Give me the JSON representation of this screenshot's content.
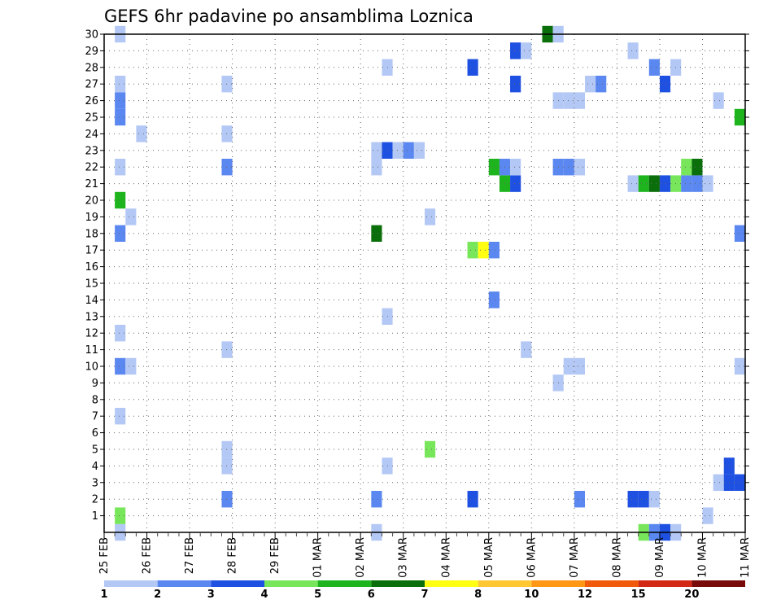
{
  "chart_data": {
    "type": "heatmap",
    "title": "GEFS 6hr padavine po ansamblima Loznica",
    "x_tick_labels": [
      "25 FEB",
      "26 FEB",
      "27 FEB",
      "28 FEB",
      "29 FEB",
      "01 MAR",
      "02 MAR",
      "03 MAR",
      "04 MAR",
      "05 MAR",
      "06 MAR",
      "07 MAR",
      "08 MAR",
      "09 MAR",
      "10 MAR",
      "11 MAR"
    ],
    "y_tick_labels": [
      "1",
      "2",
      "3",
      "4",
      "5",
      "6",
      "7",
      "8",
      "9",
      "10",
      "11",
      "12",
      "13",
      "14",
      "15",
      "16",
      "17",
      "18",
      "19",
      "20",
      "21",
      "22",
      "23",
      "24",
      "25",
      "26",
      "27",
      "28",
      "29",
      "30"
    ],
    "x_range_days": [
      0,
      15
    ],
    "y_range": [
      0,
      30
    ],
    "grid": true,
    "colorbar": {
      "labels": [
        "1",
        "2",
        "3",
        "4",
        "5",
        "6",
        "7",
        "8",
        "10",
        "12",
        "15",
        "20"
      ],
      "colors": [
        "#b4c8f5",
        "#5a87f0",
        "#1e50e1",
        "#78e65a",
        "#1eb41e",
        "#0a6e0a",
        "#ffff14",
        "#ffc832",
        "#ff9614",
        "#f05a0a",
        "#d22814",
        "#780a0a"
      ]
    },
    "cells_note": "each cell: day offset from 25 FEB 00z, member row, precipitation value",
    "cells": [
      {
        "x": 0.25,
        "y": 0,
        "v": 1.5
      },
      {
        "x": 0.25,
        "y": 1,
        "v": 4.5
      },
      {
        "x": 0.25,
        "y": 7,
        "v": 1.5
      },
      {
        "x": 0.25,
        "y": 10,
        "v": 2.5
      },
      {
        "x": 0.5,
        "y": 10,
        "v": 1.5
      },
      {
        "x": 0.25,
        "y": 12,
        "v": 1.5
      },
      {
        "x": 0.25,
        "y": 18,
        "v": 2.5
      },
      {
        "x": 0.5,
        "y": 19,
        "v": 1.5
      },
      {
        "x": 0.25,
        "y": 20,
        "v": 5.5
      },
      {
        "x": 0.25,
        "y": 22,
        "v": 1.5
      },
      {
        "x": 0.25,
        "y": 25,
        "v": 2.5
      },
      {
        "x": 0.25,
        "y": 26,
        "v": 2.5
      },
      {
        "x": 0.25,
        "y": 27,
        "v": 1.5
      },
      {
        "x": 0.25,
        "y": 30,
        "v": 1.5
      },
      {
        "x": 0.75,
        "y": 24,
        "v": 1.5
      },
      {
        "x": 2.75,
        "y": 2,
        "v": 2.5
      },
      {
        "x": 2.75,
        "y": 4,
        "v": 1.5
      },
      {
        "x": 2.75,
        "y": 5,
        "v": 1.5
      },
      {
        "x": 2.75,
        "y": 11,
        "v": 1.5
      },
      {
        "x": 2.75,
        "y": 22,
        "v": 2.5
      },
      {
        "x": 2.75,
        "y": 24,
        "v": 1.5
      },
      {
        "x": 2.75,
        "y": 27,
        "v": 1.5
      },
      {
        "x": 6.25,
        "y": 0,
        "v": 1.5
      },
      {
        "x": 6.25,
        "y": 2,
        "v": 2.5
      },
      {
        "x": 6.25,
        "y": 18,
        "v": 6.5
      },
      {
        "x": 6.25,
        "y": 22,
        "v": 1.5
      },
      {
        "x": 6.25,
        "y": 23,
        "v": 1.5
      },
      {
        "x": 6.5,
        "y": 4,
        "v": 1.5
      },
      {
        "x": 6.5,
        "y": 13,
        "v": 1.5
      },
      {
        "x": 6.5,
        "y": 23,
        "v": 3.5
      },
      {
        "x": 6.5,
        "y": 28,
        "v": 1.5
      },
      {
        "x": 6.75,
        "y": 23,
        "v": 1.5
      },
      {
        "x": 7.0,
        "y": 23,
        "v": 2.5
      },
      {
        "x": 7.25,
        "y": 23,
        "v": 1.5
      },
      {
        "x": 7.5,
        "y": 5,
        "v": 4.5
      },
      {
        "x": 7.5,
        "y": 19,
        "v": 1.5
      },
      {
        "x": 8.5,
        "y": 2,
        "v": 3.5
      },
      {
        "x": 8.5,
        "y": 17,
        "v": 4.5
      },
      {
        "x": 8.5,
        "y": 28,
        "v": 3.5
      },
      {
        "x": 8.75,
        "y": 17,
        "v": 7.5
      },
      {
        "x": 9.0,
        "y": 14,
        "v": 2.5
      },
      {
        "x": 9.0,
        "y": 17,
        "v": 2.5
      },
      {
        "x": 9.0,
        "y": 22,
        "v": 5.5
      },
      {
        "x": 9.25,
        "y": 21,
        "v": 5.5
      },
      {
        "x": 9.25,
        "y": 22,
        "v": 2.5
      },
      {
        "x": 9.5,
        "y": 21,
        "v": 3.5
      },
      {
        "x": 9.5,
        "y": 22,
        "v": 1.5
      },
      {
        "x": 9.5,
        "y": 27,
        "v": 3.5
      },
      {
        "x": 9.5,
        "y": 29,
        "v": 3.5
      },
      {
        "x": 9.75,
        "y": 11,
        "v": 1.5
      },
      {
        "x": 9.75,
        "y": 29,
        "v": 1.5
      },
      {
        "x": 10.25,
        "y": 30,
        "v": 6.5
      },
      {
        "x": 10.5,
        "y": 9,
        "v": 1.5
      },
      {
        "x": 10.5,
        "y": 22,
        "v": 2.5
      },
      {
        "x": 10.5,
        "y": 26,
        "v": 1.5
      },
      {
        "x": 10.5,
        "y": 30,
        "v": 1.5
      },
      {
        "x": 10.75,
        "y": 10,
        "v": 1.5
      },
      {
        "x": 10.75,
        "y": 22,
        "v": 2.5
      },
      {
        "x": 10.75,
        "y": 26,
        "v": 1.5
      },
      {
        "x": 11.0,
        "y": 2,
        "v": 2.5
      },
      {
        "x": 11.0,
        "y": 10,
        "v": 1.5
      },
      {
        "x": 11.0,
        "y": 22,
        "v": 1.5
      },
      {
        "x": 11.0,
        "y": 26,
        "v": 1.5
      },
      {
        "x": 11.25,
        "y": 27,
        "v": 1.5
      },
      {
        "x": 11.5,
        "y": 27,
        "v": 2.5
      },
      {
        "x": 12.25,
        "y": 2,
        "v": 3.5
      },
      {
        "x": 12.25,
        "y": 21,
        "v": 1.5
      },
      {
        "x": 12.25,
        "y": 29,
        "v": 1.5
      },
      {
        "x": 12.5,
        "y": 0,
        "v": 4.5
      },
      {
        "x": 12.5,
        "y": 2,
        "v": 3.5
      },
      {
        "x": 12.5,
        "y": 21,
        "v": 5.5
      },
      {
        "x": 12.75,
        "y": 0,
        "v": 2.5
      },
      {
        "x": 12.75,
        "y": 2,
        "v": 1.5
      },
      {
        "x": 12.75,
        "y": 21,
        "v": 6.5
      },
      {
        "x": 12.75,
        "y": 28,
        "v": 2.5
      },
      {
        "x": 13.0,
        "y": 0,
        "v": 3.5
      },
      {
        "x": 13.0,
        "y": 21,
        "v": 3.5
      },
      {
        "x": 13.0,
        "y": 27,
        "v": 3.5
      },
      {
        "x": 13.25,
        "y": 0,
        "v": 1.5
      },
      {
        "x": 13.25,
        "y": 21,
        "v": 4.5
      },
      {
        "x": 13.25,
        "y": 28,
        "v": 1.5
      },
      {
        "x": 13.5,
        "y": 21,
        "v": 2.5
      },
      {
        "x": 13.5,
        "y": 22,
        "v": 4.5
      },
      {
        "x": 13.75,
        "y": 21,
        "v": 2.5
      },
      {
        "x": 13.75,
        "y": 22,
        "v": 6.5
      },
      {
        "x": 14.0,
        "y": 1,
        "v": 1.5
      },
      {
        "x": 14.0,
        "y": 21,
        "v": 1.5
      },
      {
        "x": 14.25,
        "y": 26,
        "v": 1.5
      },
      {
        "x": 14.25,
        "y": 3,
        "v": 1.5
      },
      {
        "x": 14.5,
        "y": 3,
        "v": 3.5
      },
      {
        "x": 14.5,
        "y": 4,
        "v": 3.5
      },
      {
        "x": 14.75,
        "y": 3,
        "v": 3.5
      },
      {
        "x": 14.75,
        "y": 10,
        "v": 1.5
      },
      {
        "x": 14.75,
        "y": 18,
        "v": 2.5
      },
      {
        "x": 14.75,
        "y": 25,
        "v": 5.5
      }
    ]
  }
}
